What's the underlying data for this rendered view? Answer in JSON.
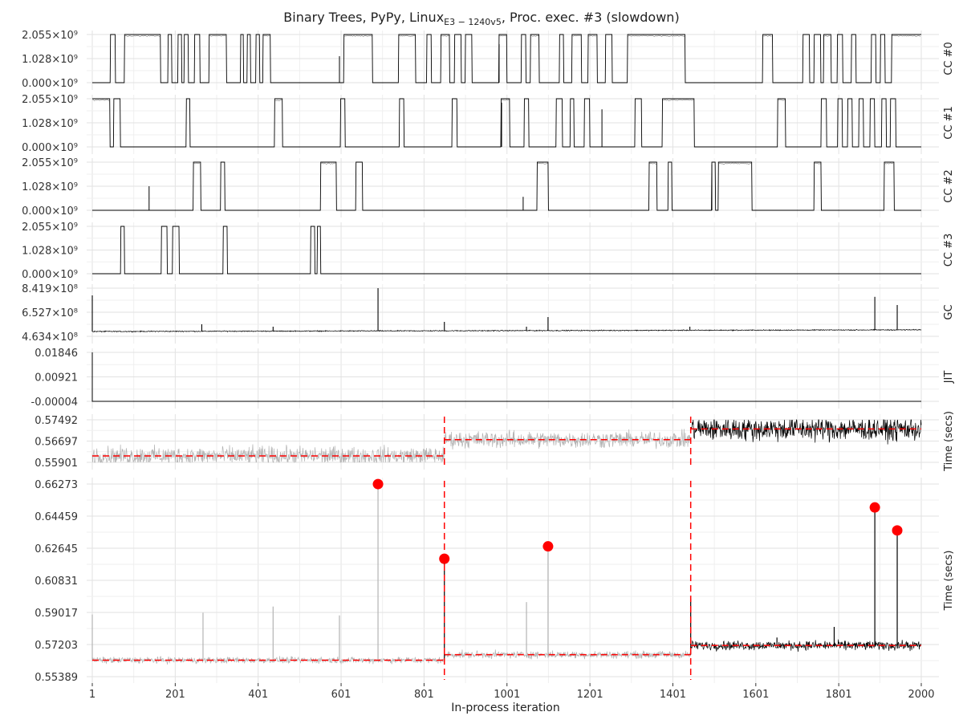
{
  "title": {
    "before": "Binary Trees, PyPy, Linux",
    "subscript": "E3 − 1240v5",
    "after": ", Proc. exec. #3 (slowdown)"
  },
  "xlabel": "In-process iteration",
  "chart_data": {
    "type": "line",
    "x_range": [
      1,
      2000
    ],
    "x_ticks": [
      "1",
      "201",
      "401",
      "601",
      "801",
      "1001",
      "1201",
      "1401",
      "1601",
      "1801",
      "2000"
    ],
    "grid": true,
    "changepoints": [
      850,
      1444
    ],
    "colors": {
      "line": "#000000",
      "muted": "#b3b3b3",
      "accent": "#ff0000",
      "grid": "#e2e2e2"
    },
    "panels": [
      {
        "id": "cc0",
        "strip_label": "CC #0",
        "kind": "binary",
        "ylim": [
          0,
          2055000000
        ],
        "y_ticks": [
          "0.000×10⁹",
          "1.028×10⁹",
          "2.055×10⁹"
        ],
        "high_intervals": [
          [
            45,
            56
          ],
          [
            79,
            165
          ],
          [
            184,
            192
          ],
          [
            208,
            216
          ],
          [
            223,
            232
          ],
          [
            248,
            260
          ],
          [
            283,
            324
          ],
          [
            359,
            365
          ],
          [
            375,
            382
          ],
          [
            396,
            404
          ],
          [
            413,
            430
          ],
          [
            608,
            676
          ],
          [
            740,
            780
          ],
          [
            808,
            818
          ],
          [
            842,
            862
          ],
          [
            875,
            890
          ],
          [
            901,
            916
          ],
          [
            982,
            1000
          ],
          [
            1036,
            1046
          ],
          [
            1058,
            1078
          ],
          [
            1128,
            1137
          ],
          [
            1158,
            1180
          ],
          [
            1197,
            1218
          ],
          [
            1239,
            1254
          ],
          [
            1292,
            1430
          ],
          [
            1618,
            1641
          ],
          [
            1715,
            1730
          ],
          [
            1742,
            1757
          ],
          [
            1765,
            1782
          ],
          [
            1798,
            1810
          ],
          [
            1832,
            1842
          ],
          [
            1880,
            1890
          ],
          [
            1902,
            1912
          ],
          [
            1929,
            2000
          ]
        ],
        "spikes": [
          [
            597,
            0.55
          ],
          [
            982,
            0.8
          ]
        ]
      },
      {
        "id": "cc1",
        "strip_label": "CC #1",
        "kind": "binary",
        "ylim": [
          0,
          2055000000
        ],
        "y_ticks": [
          "0.000×10⁹",
          "1.028×10⁹",
          "2.055×10⁹"
        ],
        "high_intervals": [
          [
            1,
            43
          ],
          [
            53,
            68
          ],
          [
            228,
            236
          ],
          [
            441,
            459
          ],
          [
            600,
            610
          ],
          [
            742,
            752
          ],
          [
            869,
            880
          ],
          [
            987,
            1007
          ],
          [
            1043,
            1053
          ],
          [
            1120,
            1134
          ],
          [
            1154,
            1162
          ],
          [
            1188,
            1200
          ],
          [
            1310,
            1325
          ],
          [
            1376,
            1452
          ],
          [
            1654,
            1672
          ],
          [
            1759,
            1771
          ],
          [
            1799,
            1809
          ],
          [
            1823,
            1833
          ],
          [
            1850,
            1860
          ],
          [
            1877,
            1887
          ],
          [
            1905,
            1915
          ],
          [
            1926,
            1938
          ]
        ],
        "spikes": [
          [
            988,
            0.92
          ],
          [
            1230,
            0.78
          ]
        ]
      },
      {
        "id": "cc2",
        "strip_label": "CC #2",
        "kind": "binary",
        "ylim": [
          0,
          2055000000
        ],
        "y_ticks": [
          "0.000×10⁹",
          "1.028×10⁹",
          "2.055×10⁹"
        ],
        "high_intervals": [
          [
            245,
            262
          ],
          [
            311,
            320
          ],
          [
            552,
            589
          ],
          [
            637,
            652
          ],
          [
            1074,
            1100
          ],
          [
            1344,
            1362
          ],
          [
            1390,
            1398
          ],
          [
            1495,
            1503
          ],
          [
            1511,
            1591
          ],
          [
            1742,
            1758
          ],
          [
            1911,
            1934
          ]
        ],
        "spikes": [
          [
            138,
            0.5
          ],
          [
            1495,
            0.95
          ],
          [
            1040,
            0.28
          ]
        ]
      },
      {
        "id": "cc3",
        "strip_label": "CC #3",
        "kind": "binary",
        "ylim": [
          0,
          2055000000
        ],
        "y_ticks": [
          "0.000×10⁹",
          "1.028×10⁹",
          "2.055×10⁹"
        ],
        "high_intervals": [
          [
            70,
            78
          ],
          [
            168,
            181
          ],
          [
            195,
            210
          ],
          [
            317,
            326
          ],
          [
            528,
            537
          ],
          [
            544,
            551
          ]
        ],
        "spikes": []
      },
      {
        "id": "gc",
        "strip_label": "GC",
        "kind": "noise",
        "ylim": [
          463400000,
          841900000
        ],
        "y_ticks": [
          "4.634×10⁸",
          "6.527×10⁸",
          "8.419×10⁸"
        ],
        "baseline": 0.1,
        "drift": 0.035,
        "amp": 0.03,
        "color_from": 0,
        "spikes": [
          [
            1,
            0.85
          ],
          [
            265,
            0.25
          ],
          [
            437,
            0.2
          ],
          [
            690,
            1.0
          ],
          [
            850,
            0.3
          ],
          [
            1048,
            0.2
          ],
          [
            1100,
            0.4
          ],
          [
            1442,
            0.2
          ],
          [
            1888,
            0.82
          ],
          [
            1942,
            0.65
          ]
        ]
      },
      {
        "id": "jit",
        "strip_label": "JIT",
        "kind": "jit",
        "ylim": [
          -4e-05,
          0.01846
        ],
        "y_ticks": [
          "-0.00004",
          "0.00921",
          "0.01846"
        ]
      },
      {
        "id": "time_zoom",
        "strip_label": "Time (secs)",
        "kind": "segments",
        "ylim": [
          0.55901,
          0.57492
        ],
        "y_ticks": [
          "0.55901",
          "0.56697",
          "0.57492"
        ],
        "segments": [
          {
            "from": 1,
            "to": 850,
            "mean": 0.5614,
            "amp": 0.0042,
            "muted": true
          },
          {
            "from": 850,
            "to": 1444,
            "mean": 0.5675,
            "amp": 0.0038,
            "muted": true
          },
          {
            "from": 1444,
            "to": 2000,
            "mean": 0.5715,
            "amp": 0.0055,
            "muted": false
          }
        ]
      },
      {
        "id": "time_full",
        "strip_label": "Time (secs)",
        "kind": "segments",
        "ylim": [
          0.55389,
          0.66273
        ],
        "y_ticks": [
          "0.55389",
          "0.57203",
          "0.59017",
          "0.60831",
          "0.62645",
          "0.64459",
          "0.66273"
        ],
        "segments": [
          {
            "from": 1,
            "to": 850,
            "mean": 0.5632,
            "amp": 0.0022,
            "muted": true
          },
          {
            "from": 850,
            "to": 1444,
            "mean": 0.5663,
            "amp": 0.0025,
            "muted": true
          },
          {
            "from": 1444,
            "to": 2000,
            "mean": 0.5715,
            "amp": 0.0032,
            "muted": false
          }
        ],
        "spikes": [
          [
            1,
            0.589
          ],
          [
            268,
            0.59
          ],
          [
            437,
            0.5935
          ],
          [
            597,
            0.5885
          ],
          [
            690,
            0.6627
          ],
          [
            850,
            0.6205
          ],
          [
            1048,
            0.596
          ],
          [
            1100,
            0.6275
          ],
          [
            1444,
            0.598
          ],
          [
            1652,
            0.576
          ],
          [
            1790,
            0.582
          ],
          [
            1888,
            0.6495
          ],
          [
            1942,
            0.6365
          ]
        ],
        "outliers": [
          [
            690,
            0.6627
          ],
          [
            850,
            0.6205
          ],
          [
            1100,
            0.6275
          ],
          [
            1888,
            0.6495
          ],
          [
            1942,
            0.6365
          ]
        ]
      }
    ]
  }
}
